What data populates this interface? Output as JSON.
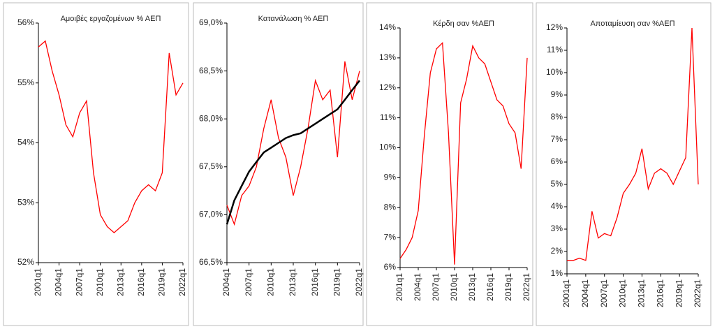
{
  "chart_data": [
    {
      "type": "line",
      "title": "Αμοιβές εργαζομένων % ΑΕΠ",
      "categories": [
        "2001q1",
        null,
        null,
        "2004q1",
        null,
        null,
        "2007q1",
        null,
        null,
        "2010q1",
        null,
        null,
        "2013q1",
        null,
        null,
        "2016q1",
        null,
        null,
        "2019q1",
        null,
        null,
        "2022q1"
      ],
      "series": [
        {
          "color": "#ff0000",
          "values": [
            55.6,
            55.7,
            55.2,
            54.8,
            54.3,
            54.1,
            54.5,
            54.7,
            53.5,
            52.8,
            52.6,
            52.5,
            52.6,
            52.7,
            53.0,
            53.2,
            53.3,
            53.2,
            53.5,
            55.5,
            54.8,
            55.0
          ]
        }
      ],
      "ylim": [
        52,
        56
      ],
      "yticks": [
        {
          "value": 52,
          "label": "52%"
        },
        {
          "value": 53,
          "label": "53%"
        },
        {
          "value": 54,
          "label": "54%"
        },
        {
          "value": 55,
          "label": "55%"
        },
        {
          "value": 56,
          "label": "56%"
        }
      ]
    },
    {
      "type": "line",
      "title": "Κατανάλωση % ΑΕΠ",
      "categories": [
        "2004q1",
        null,
        null,
        "2007q1",
        null,
        null,
        "2010q1",
        null,
        null,
        "2013q1",
        null,
        null,
        "2016q1",
        null,
        null,
        "2019q1",
        null,
        null,
        "2022q1"
      ],
      "series": [
        {
          "color": "#ff0000",
          "values": [
            67.1,
            66.9,
            67.2,
            67.3,
            67.5,
            67.9,
            68.2,
            67.8,
            67.6,
            67.2,
            67.5,
            67.9,
            68.4,
            68.2,
            68.3,
            67.6,
            68.6,
            68.2,
            68.5
          ]
        },
        {
          "color": "#000000",
          "values": [
            66.9,
            67.15,
            67.3,
            67.45,
            67.55,
            67.65,
            67.7,
            67.75,
            67.8,
            67.83,
            67.85,
            67.9,
            67.95,
            68.0,
            68.05,
            68.1,
            68.2,
            68.3,
            68.4
          ]
        }
      ],
      "ylim": [
        66.5,
        69
      ],
      "yticks": [
        {
          "value": 66.5,
          "label": "66,5%"
        },
        {
          "value": 67,
          "label": "67,0%"
        },
        {
          "value": 67.5,
          "label": "67,5%"
        },
        {
          "value": 68,
          "label": "68,0%"
        },
        {
          "value": 68.5,
          "label": "68,5%"
        },
        {
          "value": 69,
          "label": "69,0%"
        }
      ]
    },
    {
      "type": "line",
      "title": "Κέρδη σαν %ΑΕΠ",
      "categories": [
        "2001q1",
        null,
        null,
        "2004q1",
        null,
        null,
        "2007q1",
        null,
        null,
        "2010q1",
        null,
        null,
        "2013q1",
        null,
        null,
        "2016q1",
        null,
        null,
        "2019q1",
        null,
        null,
        "2022q1"
      ],
      "series": [
        {
          "color": "#ff0000",
          "values": [
            6.3,
            6.6,
            7.0,
            7.9,
            10.4,
            12.5,
            13.3,
            13.5,
            10.5,
            6.1,
            11.5,
            12.3,
            13.4,
            13.0,
            12.8,
            12.2,
            11.6,
            11.4,
            10.8,
            10.5,
            9.3,
            13.0
          ]
        }
      ],
      "ylim": [
        6,
        14
      ],
      "yticks": [
        {
          "value": 6,
          "label": "6%"
        },
        {
          "value": 7,
          "label": "7%"
        },
        {
          "value": 8,
          "label": "8%"
        },
        {
          "value": 9,
          "label": "9%"
        },
        {
          "value": 10,
          "label": "10%"
        },
        {
          "value": 11,
          "label": "11%"
        },
        {
          "value": 12,
          "label": "12%"
        },
        {
          "value": 13,
          "label": "13%"
        },
        {
          "value": 14,
          "label": "14%"
        }
      ]
    },
    {
      "type": "line",
      "title": "Αποταμίευση σαν %ΑΕΠ",
      "categories": [
        "2001q1",
        null,
        null,
        "2004q1",
        null,
        null,
        "2007q1",
        null,
        null,
        "2010q1",
        null,
        null,
        "2013q1",
        null,
        null,
        "2016q1",
        null,
        null,
        "2019q1",
        null,
        null,
        "2022q1"
      ],
      "series": [
        {
          "color": "#ff0000",
          "values": [
            1.6,
            1.6,
            1.7,
            1.6,
            3.8,
            2.6,
            2.8,
            2.7,
            3.5,
            4.6,
            5.0,
            5.5,
            6.6,
            4.8,
            5.5,
            5.7,
            5.5,
            5.0,
            5.6,
            6.2,
            12.0,
            5.0
          ]
        }
      ],
      "ylim": [
        1,
        12
      ],
      "yticks": [
        {
          "value": 1,
          "label": "1%"
        },
        {
          "value": 2,
          "label": "2%"
        },
        {
          "value": 3,
          "label": "3%"
        },
        {
          "value": 4,
          "label": "4%"
        },
        {
          "value": 5,
          "label": "5%"
        },
        {
          "value": 6,
          "label": "6%"
        },
        {
          "value": 7,
          "label": "7%"
        },
        {
          "value": 8,
          "label": "8%"
        },
        {
          "value": 9,
          "label": "9%"
        },
        {
          "value": 10,
          "label": "10%"
        },
        {
          "value": 11,
          "label": "11%"
        },
        {
          "value": 12,
          "label": "12%"
        }
      ]
    }
  ]
}
